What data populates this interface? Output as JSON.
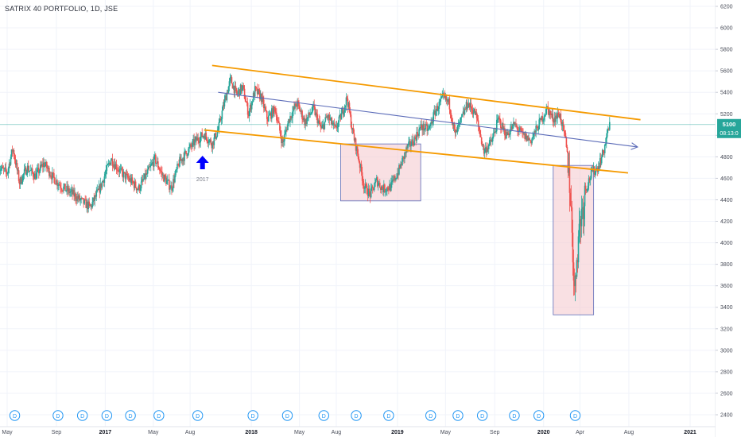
{
  "header": {
    "title": "SATRIX 40 PORTFOLIO, 1D, JSE"
  },
  "chart_data": {
    "type": "candlestick",
    "ylim": [
      2340,
      6240
    ],
    "y_ticks": [
      2400,
      2600,
      2800,
      3000,
      3200,
      3400,
      3600,
      3800,
      4000,
      4200,
      4400,
      4600,
      4800,
      5000,
      5200,
      5400,
      5600,
      5800,
      6000,
      6200
    ],
    "x_ticks": [
      "May",
      "Sep",
      "2017",
      "May",
      "Aug",
      "2018",
      "May",
      "Aug",
      "2019",
      "May",
      "Sep",
      "2020",
      "Apr",
      "Aug",
      "2021"
    ],
    "x_tick_dates": [
      "2016-05-01",
      "2016-09-01",
      "2017-01-01",
      "2017-05-01",
      "2017-08-01",
      "2018-01-01",
      "2018-05-01",
      "2018-08-01",
      "2019-01-01",
      "2019-05-01",
      "2019-09-01",
      "2020-01-01",
      "2020-04-01",
      "2020-08-01",
      "2021-01-01"
    ],
    "price_path": [
      [
        "2016-04-10",
        4700
      ],
      [
        "2016-05-01",
        4650
      ],
      [
        "2016-05-15",
        4880
      ],
      [
        "2016-06-01",
        4560
      ],
      [
        "2016-06-20",
        4700
      ],
      [
        "2016-07-10",
        4620
      ],
      [
        "2016-08-01",
        4740
      ],
      [
        "2016-08-25",
        4600
      ],
      [
        "2016-09-15",
        4520
      ],
      [
        "2016-10-10",
        4460
      ],
      [
        "2016-11-05",
        4380
      ],
      [
        "2016-11-25",
        4330
      ],
      [
        "2016-12-20",
        4520
      ],
      [
        "2017-01-15",
        4780
      ],
      [
        "2017-02-10",
        4650
      ],
      [
        "2017-03-05",
        4580
      ],
      [
        "2017-03-25",
        4500
      ],
      [
        "2017-04-15",
        4640
      ],
      [
        "2017-05-05",
        4780
      ],
      [
        "2017-05-25",
        4620
      ],
      [
        "2017-06-15",
        4510
      ],
      [
        "2017-07-05",
        4750
      ],
      [
        "2017-07-25",
        4850
      ],
      [
        "2017-08-15",
        4950
      ],
      [
        "2017-09-05",
        5010
      ],
      [
        "2017-09-25",
        4920
      ],
      [
        "2017-10-10",
        5050
      ],
      [
        "2017-10-25",
        5300
      ],
      [
        "2017-11-10",
        5520
      ],
      [
        "2017-11-25",
        5380
      ],
      [
        "2017-12-10",
        5450
      ],
      [
        "2017-12-25",
        5200
      ],
      [
        "2018-01-10",
        5420
      ],
      [
        "2018-01-25",
        5360
      ],
      [
        "2018-02-10",
        5150
      ],
      [
        "2018-03-01",
        5250
      ],
      [
        "2018-03-20",
        4920
      ],
      [
        "2018-04-05",
        5150
      ],
      [
        "2018-04-25",
        5300
      ],
      [
        "2018-05-15",
        5120
      ],
      [
        "2018-06-05",
        5250
      ],
      [
        "2018-06-25",
        5050
      ],
      [
        "2018-07-10",
        5180
      ],
      [
        "2018-07-30",
        5050
      ],
      [
        "2018-08-15",
        5200
      ],
      [
        "2018-08-28",
        5350
      ],
      [
        "2018-09-10",
        5050
      ],
      [
        "2018-09-25",
        4800
      ],
      [
        "2018-10-10",
        4520
      ],
      [
        "2018-10-25",
        4450
      ],
      [
        "2018-11-10",
        4580
      ],
      [
        "2018-11-25",
        4500
      ],
      [
        "2018-12-15",
        4520
      ],
      [
        "2019-01-05",
        4680
      ],
      [
        "2019-01-25",
        4880
      ],
      [
        "2019-02-10",
        4950
      ],
      [
        "2019-03-01",
        5080
      ],
      [
        "2019-03-20",
        5050
      ],
      [
        "2019-04-05",
        5220
      ],
      [
        "2019-04-25",
        5350
      ],
      [
        "2019-05-10",
        5300
      ],
      [
        "2019-05-25",
        5000
      ],
      [
        "2019-06-10",
        5150
      ],
      [
        "2019-06-25",
        5300
      ],
      [
        "2019-07-15",
        5200
      ],
      [
        "2019-08-05",
        4850
      ],
      [
        "2019-08-25",
        4950
      ],
      [
        "2019-09-10",
        5150
      ],
      [
        "2019-09-30",
        5000
      ],
      [
        "2019-10-20",
        5100
      ],
      [
        "2019-11-10",
        5000
      ],
      [
        "2019-11-30",
        4950
      ],
      [
        "2019-12-20",
        5100
      ],
      [
        "2020-01-10",
        5250
      ],
      [
        "2020-01-25",
        5150
      ],
      [
        "2020-02-10",
        5200
      ],
      [
        "2020-02-25",
        4950
      ],
      [
        "2020-03-05",
        4650
      ],
      [
        "2020-03-12",
        4100
      ],
      [
        "2020-03-19",
        3500
      ],
      [
        "2020-03-24",
        3900
      ],
      [
        "2020-04-01",
        4200
      ],
      [
        "2020-04-15",
        4500
      ],
      [
        "2020-04-30",
        4650
      ],
      [
        "2020-05-15",
        4700
      ],
      [
        "2020-05-30",
        4850
      ],
      [
        "2020-06-10",
        5050
      ],
      [
        "2020-06-15",
        5100
      ]
    ],
    "last_price": "5100",
    "countdown": "08:13:0",
    "dividend_marker": "D",
    "dividend_dates": [
      "2016-05-20",
      "2016-09-05",
      "2016-11-05",
      "2017-01-05",
      "2017-03-05",
      "2017-05-15",
      "2017-08-20",
      "2018-01-05",
      "2018-04-01",
      "2018-07-01",
      "2018-09-20",
      "2018-12-10",
      "2019-03-25",
      "2019-06-01",
      "2019-08-01",
      "2019-10-20",
      "2019-12-20",
      "2020-03-20"
    ],
    "annotation": {
      "label": "2017",
      "date": "2017-09-01",
      "color": "#0000ff"
    },
    "trendlines": [
      {
        "name": "channel-top",
        "color": "#f59a00",
        "from": [
          "2017-09-25",
          5650
        ],
        "to": [
          "2020-08-30",
          5145
        ]
      },
      {
        "name": "channel-bottom",
        "color": "#f59a00",
        "from": [
          "2017-09-05",
          5050
        ],
        "to": [
          "2020-07-30",
          4650
        ]
      },
      {
        "name": "midline",
        "color": "#5b6bb8",
        "from": [
          "2017-10-10",
          5400
        ],
        "to": [
          "2020-08-05",
          4900
        ]
      },
      {
        "name": "current-price",
        "color": "#26a69a",
        "from": [
          "2016-04-10",
          5100
        ],
        "to": [
          "2021-04-01",
          5100
        ]
      }
    ],
    "zones": [
      {
        "from": [
          "2018-08-12",
          4920
        ],
        "to": [
          "2019-02-28",
          4390
        ]
      },
      {
        "from": [
          "2020-01-25",
          4720
        ],
        "to": [
          "2020-05-05",
          3330
        ]
      }
    ],
    "colors": {
      "up": "#26a69a",
      "down": "#ef5350",
      "tag": "#26a69a",
      "zone_fill": "#f4c7cc",
      "zone_border": "#5b6bb8",
      "dividend": "#2196f3"
    }
  }
}
